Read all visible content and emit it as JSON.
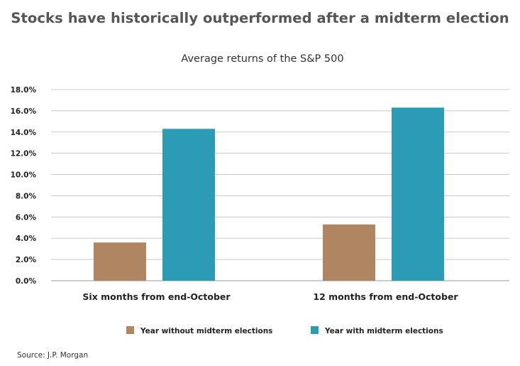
{
  "header": {
    "title": "Stocks have historically outperformed after a midterm election"
  },
  "footer": {
    "source": "Source: J.P. Morgan"
  },
  "chart_data": {
    "type": "bar",
    "title": "Average returns of the S&P 500",
    "xlabel": "",
    "ylabel": "",
    "categories": [
      "Six months from end-October",
      "12 months from end-October"
    ],
    "series": [
      {
        "name": "Year without midterm elections",
        "color": "#b08562",
        "values": [
          3.6,
          5.3
        ]
      },
      {
        "name": "Year with midterm elections",
        "color": "#2b9bb6",
        "values": [
          14.3,
          16.3
        ]
      }
    ],
    "ylim": [
      0,
      18
    ],
    "yticks": [
      "0.0%",
      "2.0%",
      "4.0%",
      "6.0%",
      "8.0%",
      "10.0%",
      "12.0%",
      "14.0%",
      "16.0%",
      "18.0%"
    ],
    "grid": true,
    "legend_position": "bottom"
  }
}
